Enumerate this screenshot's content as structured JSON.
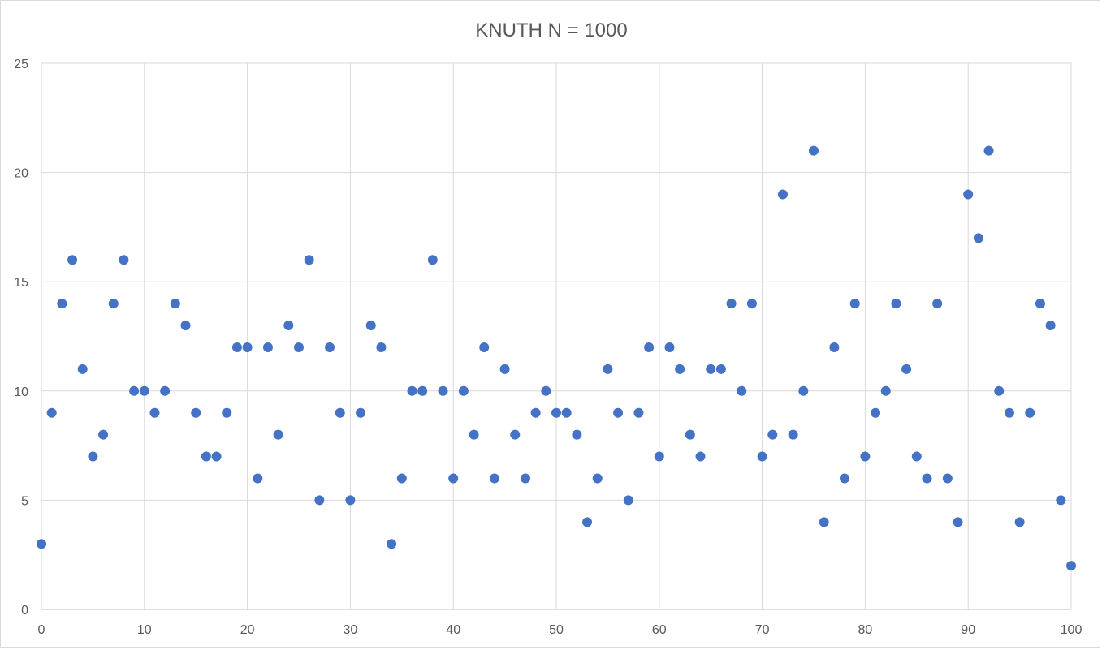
{
  "chart_data": {
    "type": "scatter",
    "title": "KNUTH N = 1000",
    "xlabel": "",
    "ylabel": "",
    "xlim": [
      0,
      100
    ],
    "ylim": [
      0,
      25
    ],
    "x_ticks": [
      0,
      10,
      20,
      30,
      40,
      50,
      60,
      70,
      80,
      90,
      100
    ],
    "y_ticks": [
      0,
      5,
      10,
      15,
      20,
      25
    ],
    "grid": true,
    "legend": "none",
    "marker_color": "#4472c4",
    "x": [
      0,
      1,
      2,
      3,
      4,
      5,
      6,
      7,
      8,
      9,
      10,
      11,
      12,
      13,
      14,
      15,
      16,
      17,
      18,
      19,
      20,
      21,
      22,
      23,
      24,
      25,
      26,
      27,
      28,
      29,
      30,
      31,
      32,
      33,
      34,
      35,
      36,
      37,
      38,
      39,
      40,
      41,
      42,
      43,
      44,
      45,
      46,
      47,
      48,
      49,
      50,
      51,
      52,
      53,
      54,
      55,
      56,
      57,
      58,
      59,
      60,
      61,
      62,
      63,
      64,
      65,
      66,
      67,
      68,
      69,
      70,
      71,
      72,
      73,
      74,
      75,
      76,
      77,
      78,
      79,
      80,
      81,
      82,
      83,
      84,
      85,
      86,
      87,
      88,
      89,
      90,
      91,
      92,
      93,
      94,
      95,
      96,
      97,
      98,
      99,
      100
    ],
    "y": [
      3,
      9,
      14,
      16,
      11,
      7,
      8,
      14,
      16,
      10,
      10,
      9,
      10,
      14,
      13,
      9,
      7,
      7,
      9,
      12,
      12,
      6,
      12,
      8,
      13,
      12,
      16,
      5,
      12,
      9,
      5,
      9,
      13,
      12,
      3,
      6,
      10,
      10,
      16,
      10,
      6,
      10,
      8,
      12,
      6,
      11,
      8,
      6,
      9,
      10,
      9,
      9,
      8,
      4,
      6,
      11,
      9,
      5,
      9,
      12,
      7,
      12,
      11,
      8,
      7,
      11,
      11,
      14,
      10,
      14,
      7,
      8,
      19,
      8,
      10,
      21,
      4,
      12,
      6,
      14,
      7,
      9,
      10,
      14,
      11,
      7,
      6,
      14,
      6,
      4,
      19,
      17,
      21,
      10,
      9,
      4,
      9,
      14,
      13,
      5,
      2
    ]
  }
}
